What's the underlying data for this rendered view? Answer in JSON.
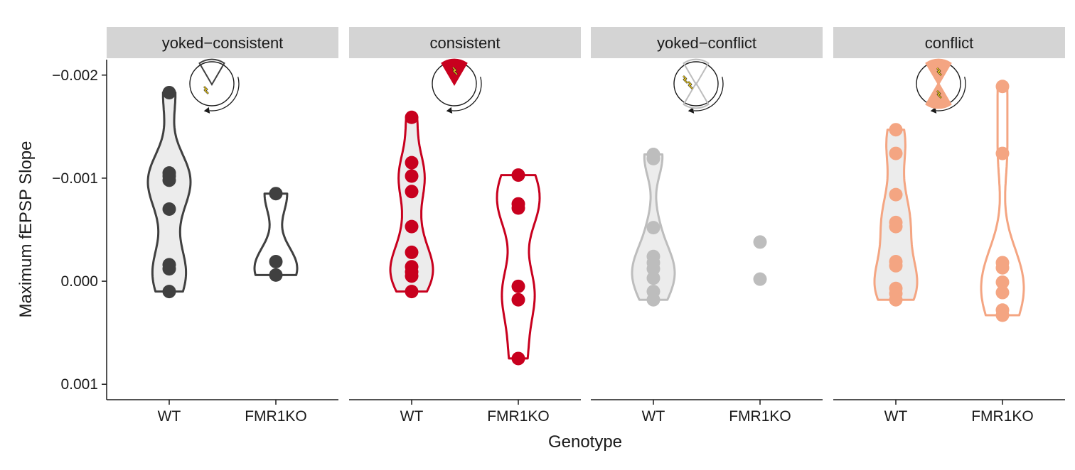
{
  "chart_data": {
    "type": "violin",
    "xlabel": "Genotype",
    "ylabel": "Maximum fEPSP Slope",
    "y_reversed": true,
    "ylim": [
      -0.00215,
      0.00115
    ],
    "y_ticks": [
      -0.002,
      -0.001,
      0.0,
      0.001
    ],
    "y_tick_labels": [
      "−0.002",
      "−0.001",
      "0.000",
      "0.001"
    ],
    "categories": [
      "WT",
      "FMR1KO"
    ],
    "grid": false,
    "legend": "none",
    "panels": [
      {
        "name": "yoked−consistent",
        "color": "#404040",
        "fill": "#ececec",
        "icon": "arena-yoked-consistent-icon",
        "groups": [
          {
            "genotype": "WT",
            "values": [
              -0.00183,
              -0.00105,
              -0.00102,
              -0.00098,
              -0.0007,
              -0.00016,
              -0.00012,
              0.0001
            ]
          },
          {
            "genotype": "FMR1KO",
            "values": [
              -0.00085,
              -0.00019,
              -6e-05
            ]
          }
        ]
      },
      {
        "name": "consistent",
        "color": "#c8001e",
        "fill": "#ececec",
        "icon": "arena-consistent-icon",
        "groups": [
          {
            "genotype": "WT",
            "values": [
              -0.00159,
              -0.00115,
              -0.00102,
              -0.00087,
              -0.00053,
              -0.00028,
              -0.00014,
              -9e-05,
              -5e-05,
              0.0001
            ]
          },
          {
            "genotype": "FMR1KO",
            "values": [
              -0.00103,
              -0.00075,
              -0.00071,
              5e-05,
              0.00018,
              0.00075
            ]
          }
        ]
      },
      {
        "name": "yoked−conflict",
        "color": "#bdbdbd",
        "fill": "#ececec",
        "icon": "arena-yoked-conflict-icon",
        "groups": [
          {
            "genotype": "WT",
            "values": [
              -0.00123,
              -0.00119,
              -0.00052,
              -0.00024,
              -0.00018,
              -0.00012,
              -3e-05,
              0.0001,
              0.00018
            ]
          },
          {
            "genotype": "FMR1KO",
            "values": [
              -0.00038,
              -2e-05
            ]
          }
        ]
      },
      {
        "name": "conflict",
        "color": "#f4a582",
        "fill": "#ececec",
        "icon": "arena-conflict-icon",
        "groups": [
          {
            "genotype": "WT",
            "values": [
              -0.00147,
              -0.00124,
              -0.00084,
              -0.00057,
              -0.00053,
              -0.00019,
              -0.00015,
              7e-05,
              0.00012,
              0.00018
            ]
          },
          {
            "genotype": "FMR1KO",
            "values": [
              -0.00189,
              -0.00124,
              -0.00018,
              -0.00013,
              1e-05,
              0.00011,
              0.00028,
              0.00033
            ]
          }
        ]
      }
    ]
  }
}
